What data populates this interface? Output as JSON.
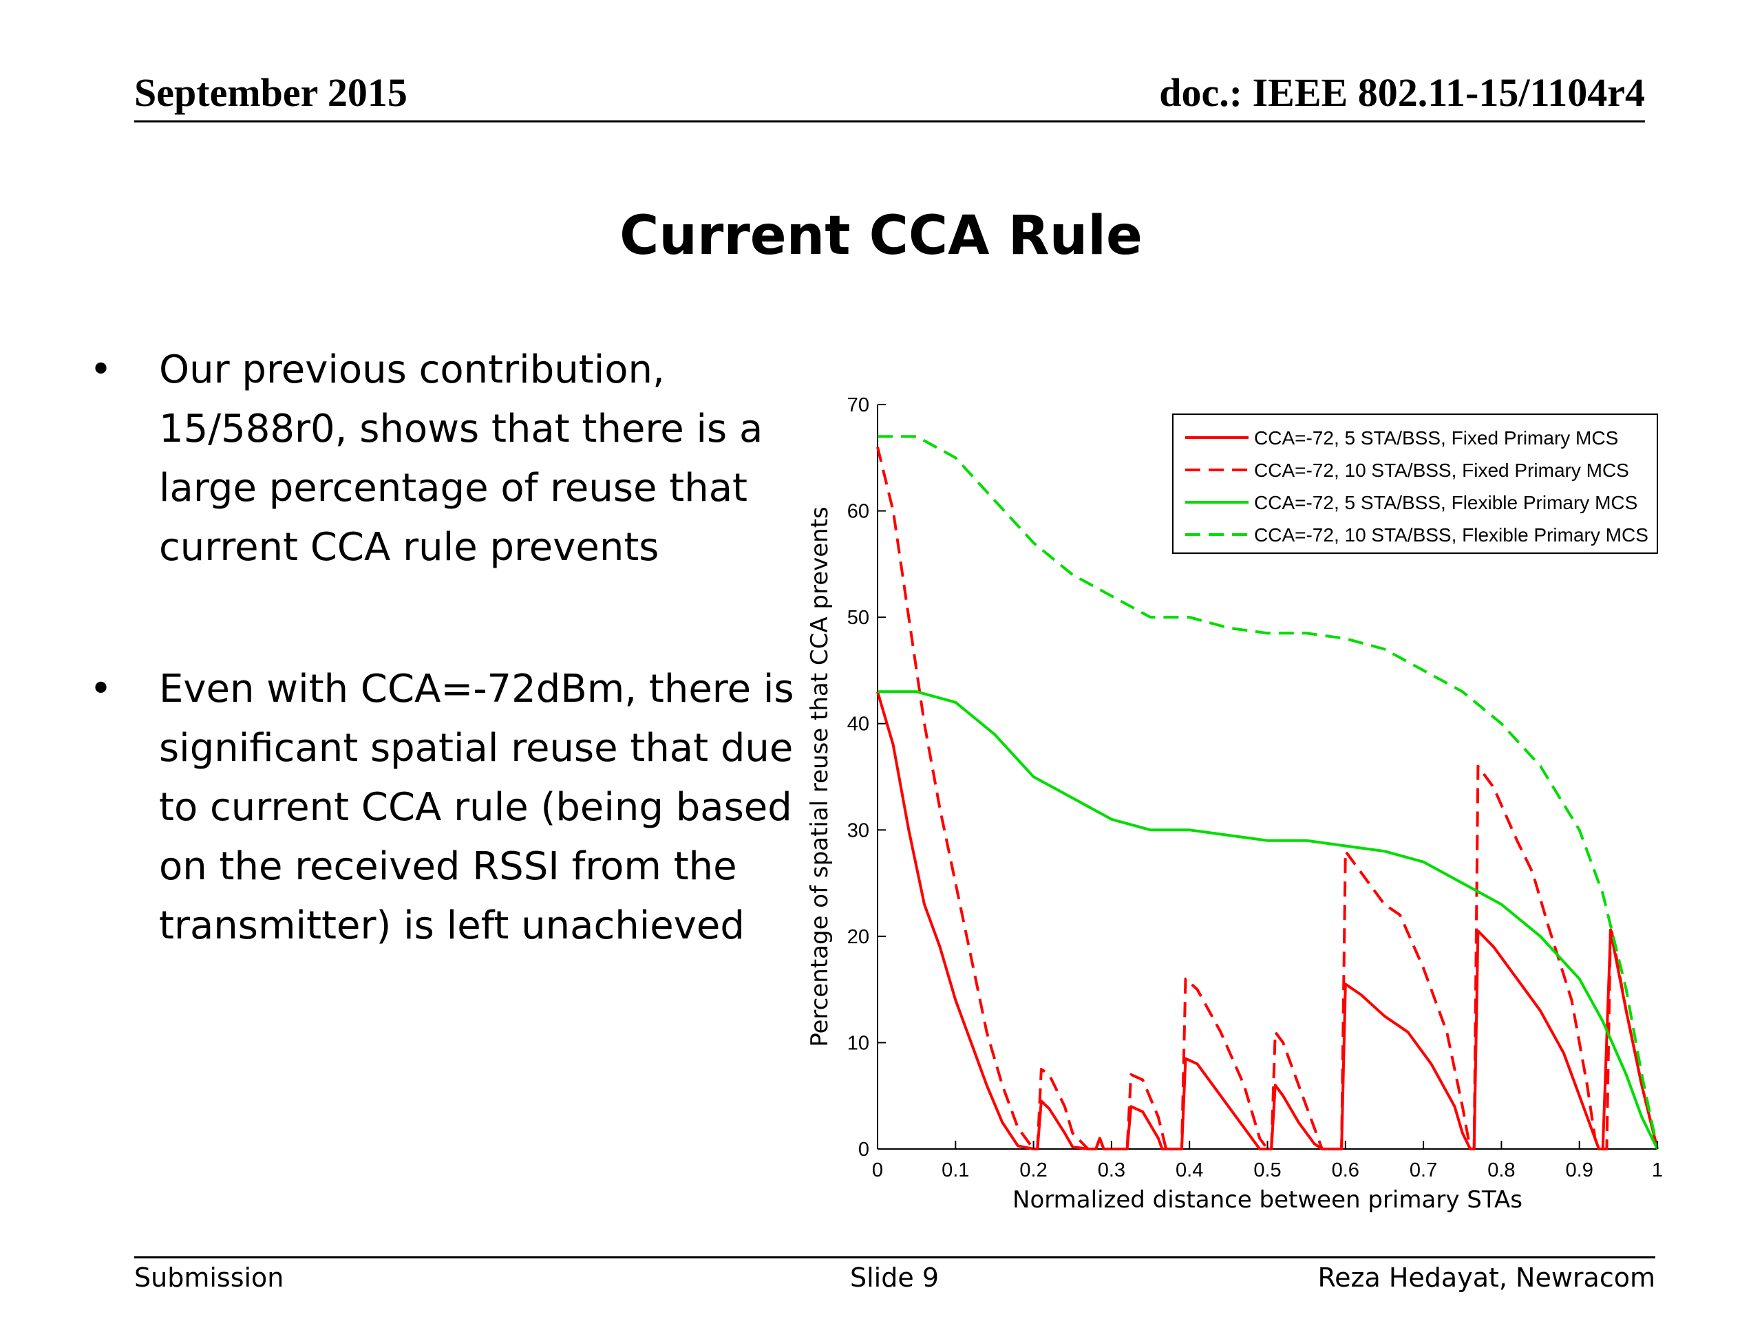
{
  "header": {
    "date": "September 2015",
    "doc": "doc.: IEEE 802.11-15/1104r4"
  },
  "title": "Current CCA Rule",
  "bullets": [
    {
      "symbol": "•",
      "text": "Our previous contribution, 15/588r0, shows that there is a large percentage of reuse that current CCA rule prevents"
    },
    {
      "symbol": "•",
      "text": "Even with CCA=-72dBm, there is significant spatial reuse that due to current CCA rule (being based on the received RSSI from the transmitter) is left unachieved"
    }
  ],
  "footer": {
    "left": "Submission",
    "middle": "Slide 9",
    "right": "Reza Hedayat, Newracom"
  },
  "chart_data": {
    "type": "line",
    "xlabel": "Normalized distance between primary STAs",
    "ylabel": "Percentage of spatial reuse that CCA prevents",
    "xlim": [
      0,
      1
    ],
    "ylim": [
      0,
      70
    ],
    "xticks": [
      0,
      0.1,
      0.2,
      0.3,
      0.4,
      0.5,
      0.6,
      0.7,
      0.8,
      0.9,
      1
    ],
    "yticks": [
      0,
      10,
      20,
      30,
      40,
      50,
      60,
      70
    ],
    "xtick_labels": [
      "0",
      "0.1",
      "0.2",
      "0.3",
      "0.4",
      "0.5",
      "0.6",
      "0.7",
      "0.8",
      "0.9",
      "1"
    ],
    "ytick_labels": [
      "0",
      "10",
      "20",
      "30",
      "40",
      "50",
      "60",
      "70"
    ],
    "grid": false,
    "legend_position": "top-right",
    "series": [
      {
        "name": "CCA=-72, 5 STA/BSS, Fixed Primary MCS",
        "color": "#ff0000",
        "dash": "solid",
        "points": [
          [
            0.0,
            43
          ],
          [
            0.02,
            38
          ],
          [
            0.04,
            30
          ],
          [
            0.06,
            23
          ],
          [
            0.08,
            19
          ],
          [
            0.1,
            14
          ],
          [
            0.12,
            10
          ],
          [
            0.14,
            6
          ],
          [
            0.16,
            2.5
          ],
          [
            0.18,
            0.3
          ],
          [
            0.2,
            0
          ],
          [
            0.205,
            0
          ],
          [
            0.21,
            4.5
          ],
          [
            0.22,
            3.8
          ],
          [
            0.24,
            1.5
          ],
          [
            0.25,
            0.2
          ],
          [
            0.27,
            0
          ],
          [
            0.28,
            0
          ],
          [
            0.285,
            1
          ],
          [
            0.29,
            0
          ],
          [
            0.32,
            0
          ],
          [
            0.325,
            4
          ],
          [
            0.34,
            3.5
          ],
          [
            0.36,
            1
          ],
          [
            0.365,
            0
          ],
          [
            0.39,
            0
          ],
          [
            0.395,
            8.5
          ],
          [
            0.41,
            8
          ],
          [
            0.44,
            5
          ],
          [
            0.47,
            2
          ],
          [
            0.49,
            0
          ],
          [
            0.505,
            0
          ],
          [
            0.51,
            6
          ],
          [
            0.52,
            5
          ],
          [
            0.54,
            2.5
          ],
          [
            0.56,
            0.5
          ],
          [
            0.57,
            0
          ],
          [
            0.595,
            0
          ],
          [
            0.6,
            15.5
          ],
          [
            0.62,
            14.5
          ],
          [
            0.65,
            12.5
          ],
          [
            0.68,
            11
          ],
          [
            0.71,
            8
          ],
          [
            0.74,
            4
          ],
          [
            0.75,
            1.5
          ],
          [
            0.76,
            0
          ],
          [
            0.765,
            0
          ],
          [
            0.77,
            20.5
          ],
          [
            0.79,
            19
          ],
          [
            0.82,
            16
          ],
          [
            0.85,
            13
          ],
          [
            0.88,
            9
          ],
          [
            0.9,
            5
          ],
          [
            0.92,
            1
          ],
          [
            0.925,
            0
          ],
          [
            0.93,
            0
          ],
          [
            0.94,
            20.5
          ],
          [
            0.96,
            13
          ],
          [
            0.98,
            6
          ],
          [
            1.0,
            0
          ]
        ]
      },
      {
        "name": "CCA=-72, 10 STA/BSS, Fixed Primary MCS",
        "color": "#ff0000",
        "dash": "dashed",
        "points": [
          [
            0.0,
            66
          ],
          [
            0.02,
            60
          ],
          [
            0.04,
            50
          ],
          [
            0.06,
            40
          ],
          [
            0.08,
            32
          ],
          [
            0.1,
            25
          ],
          [
            0.12,
            18
          ],
          [
            0.14,
            11
          ],
          [
            0.16,
            6
          ],
          [
            0.18,
            2
          ],
          [
            0.2,
            0
          ],
          [
            0.205,
            0
          ],
          [
            0.21,
            7.5
          ],
          [
            0.22,
            7
          ],
          [
            0.24,
            4
          ],
          [
            0.25,
            1.5
          ],
          [
            0.27,
            0
          ],
          [
            0.28,
            0
          ],
          [
            0.285,
            1
          ],
          [
            0.29,
            0
          ],
          [
            0.32,
            0
          ],
          [
            0.325,
            7
          ],
          [
            0.34,
            6.5
          ],
          [
            0.36,
            3
          ],
          [
            0.37,
            0
          ],
          [
            0.39,
            0
          ],
          [
            0.395,
            16
          ],
          [
            0.41,
            15
          ],
          [
            0.44,
            11
          ],
          [
            0.47,
            6
          ],
          [
            0.49,
            1
          ],
          [
            0.5,
            0
          ],
          [
            0.505,
            0
          ],
          [
            0.51,
            11
          ],
          [
            0.52,
            10
          ],
          [
            0.54,
            6
          ],
          [
            0.56,
            2
          ],
          [
            0.57,
            0
          ],
          [
            0.595,
            0
          ],
          [
            0.6,
            28
          ],
          [
            0.62,
            26
          ],
          [
            0.65,
            23
          ],
          [
            0.67,
            22
          ],
          [
            0.7,
            17
          ],
          [
            0.73,
            11
          ],
          [
            0.75,
            4
          ],
          [
            0.76,
            0
          ],
          [
            0.765,
            0
          ],
          [
            0.77,
            36
          ],
          [
            0.79,
            34
          ],
          [
            0.82,
            29
          ],
          [
            0.84,
            26
          ],
          [
            0.86,
            21
          ],
          [
            0.89,
            14
          ],
          [
            0.91,
            6
          ],
          [
            0.92,
            1
          ],
          [
            0.925,
            0
          ],
          [
            0.935,
            0
          ],
          [
            0.94,
            21
          ],
          [
            0.96,
            13
          ],
          [
            0.98,
            6
          ],
          [
            1.0,
            0
          ]
        ]
      },
      {
        "name": "CCA=-72, 5 STA/BSS, Flexible Primary MCS",
        "color": "#00dd00",
        "dash": "solid",
        "points": [
          [
            0.0,
            43
          ],
          [
            0.05,
            43
          ],
          [
            0.1,
            42
          ],
          [
            0.15,
            39
          ],
          [
            0.2,
            35
          ],
          [
            0.25,
            33
          ],
          [
            0.3,
            31
          ],
          [
            0.35,
            30
          ],
          [
            0.4,
            30
          ],
          [
            0.45,
            29.5
          ],
          [
            0.5,
            29
          ],
          [
            0.55,
            29
          ],
          [
            0.6,
            28.5
          ],
          [
            0.65,
            28
          ],
          [
            0.7,
            27
          ],
          [
            0.75,
            25
          ],
          [
            0.8,
            23
          ],
          [
            0.85,
            20
          ],
          [
            0.9,
            16
          ],
          [
            0.93,
            12
          ],
          [
            0.96,
            7
          ],
          [
            0.98,
            3
          ],
          [
            1.0,
            0
          ]
        ]
      },
      {
        "name": "CCA=-72, 10 STA/BSS, Flexible Primary MCS",
        "color": "#00dd00",
        "dash": "dashed",
        "points": [
          [
            0.0,
            67
          ],
          [
            0.05,
            67
          ],
          [
            0.1,
            65
          ],
          [
            0.15,
            61
          ],
          [
            0.2,
            57
          ],
          [
            0.25,
            54
          ],
          [
            0.3,
            52
          ],
          [
            0.35,
            50
          ],
          [
            0.4,
            50
          ],
          [
            0.45,
            49
          ],
          [
            0.5,
            48.5
          ],
          [
            0.55,
            48.5
          ],
          [
            0.6,
            48
          ],
          [
            0.65,
            47
          ],
          [
            0.7,
            45
          ],
          [
            0.75,
            43
          ],
          [
            0.8,
            40
          ],
          [
            0.85,
            36
          ],
          [
            0.9,
            30
          ],
          [
            0.93,
            24
          ],
          [
            0.96,
            15
          ],
          [
            0.98,
            7
          ],
          [
            1.0,
            0
          ]
        ]
      }
    ]
  }
}
